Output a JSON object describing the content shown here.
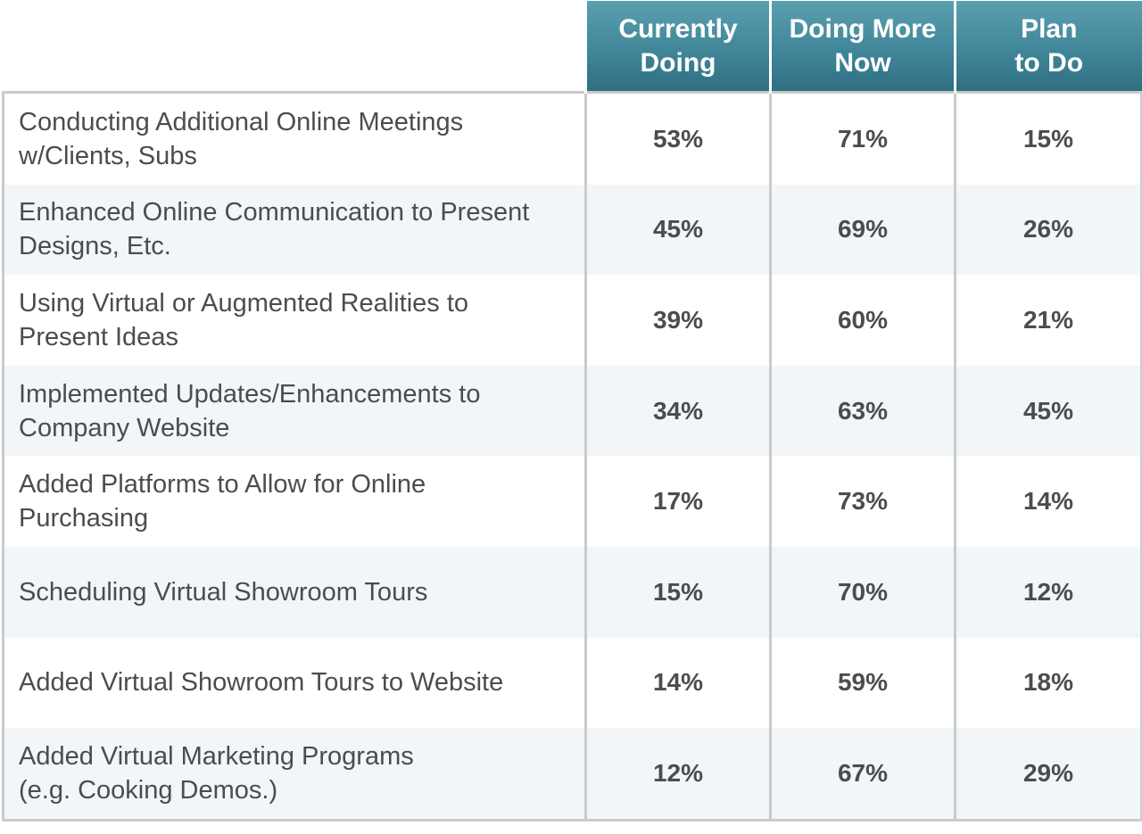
{
  "chart_data": {
    "type": "table",
    "columns": [
      {
        "lines": [
          "Currently",
          "Doing"
        ]
      },
      {
        "lines": [
          "Doing More",
          "Now"
        ]
      },
      {
        "lines": [
          "Plan",
          "to Do"
        ]
      }
    ],
    "rows": [
      {
        "lines": [
          "Conducting Additional Online Meetings",
          "w/Clients, Subs"
        ],
        "values": [
          "53%",
          "71%",
          "15%"
        ]
      },
      {
        "lines": [
          "Enhanced Online Communication to Present",
          "Designs, Etc."
        ],
        "values": [
          "45%",
          "69%",
          "26%"
        ]
      },
      {
        "lines": [
          "Using Virtual or Augmented Realities to",
          "Present Ideas"
        ],
        "values": [
          "39%",
          "60%",
          "21%"
        ]
      },
      {
        "lines": [
          "Implemented Updates/Enhancements to",
          "Company Website"
        ],
        "values": [
          "34%",
          "63%",
          "45%"
        ]
      },
      {
        "lines": [
          "Added Platforms to Allow for Online",
          "Purchasing"
        ],
        "values": [
          "17%",
          "73%",
          "14%"
        ]
      },
      {
        "lines": [
          "Scheduling Virtual Showroom Tours"
        ],
        "values": [
          "15%",
          "70%",
          "12%"
        ]
      },
      {
        "lines": [
          "Added Virtual Showroom Tours to Website"
        ],
        "values": [
          "14%",
          "59%",
          "18%"
        ]
      },
      {
        "lines": [
          "Added Virtual Marketing Programs",
          "(e.g. Cooking Demos.)"
        ],
        "values": [
          "12%",
          "67%",
          "29%"
        ]
      }
    ]
  },
  "colors": {
    "header_top": "#5aa0b0",
    "header_bottom": "#2f6f82",
    "grid": "#c9cbcd",
    "row_alt": "#f2f6f9",
    "text": "#4a4d50"
  }
}
